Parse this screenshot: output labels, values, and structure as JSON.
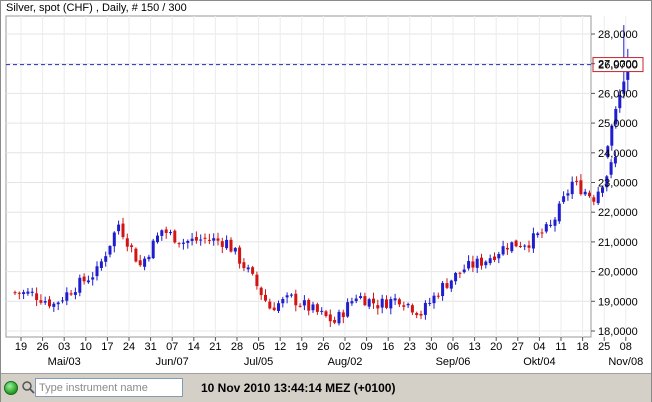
{
  "chart_title": "Silver, spot (CHF) , Daily, # 150 / 300",
  "status": {
    "input_placeholder": "Type instrument name",
    "datetime": "10 Nov 2010 13:44:14  MEZ (+0100)"
  },
  "colors": {
    "up": "#1e1ecf",
    "down": "#d21414",
    "current_line": "#2a2ab8",
    "price_box_border": "#c4232b"
  },
  "chart_data": {
    "type": "candlestick",
    "title": "Silver, spot (CHF) , Daily, # 150 / 300",
    "instrument": "Silver, spot (CHF)",
    "interval": "Daily",
    "ylim": [
      17800,
      28700
    ],
    "yticks": [
      18000,
      19000,
      20000,
      21000,
      22000,
      23000,
      24000,
      25000,
      26000,
      27000,
      28000
    ],
    "ytick_labels": [
      "18,0000",
      "19,0000",
      "20,0000",
      "21,0000",
      "22,0000",
      "23,0000",
      "24,0000",
      "25,0000",
      "26,0000",
      "27,0000",
      "28,0000"
    ],
    "current_price": 26970,
    "current_price_label": "26,9700",
    "xtick_day_labels": [
      "19",
      "26",
      "03",
      "10",
      "17",
      "24",
      "31",
      "07",
      "14",
      "21",
      "28",
      "05",
      "12",
      "19",
      "26",
      "02",
      "09",
      "16",
      "23",
      "30",
      "06",
      "13",
      "20",
      "27",
      "04",
      "11",
      "18",
      "25",
      "08"
    ],
    "xtick_month_labels": [
      {
        "label": "Mai/03",
        "tick_index": 2
      },
      {
        "label": "Jun/07",
        "tick_index": 7
      },
      {
        "label": "Jul/05",
        "tick_index": 11
      },
      {
        "label": "Aug/02",
        "tick_index": 15
      },
      {
        "label": "Sep/06",
        "tick_index": 20
      },
      {
        "label": "Okt/04",
        "tick_index": 24
      },
      {
        "label": "Nov/08",
        "tick_index": 28
      }
    ],
    "grid": true,
    "weekly_close_path": [
      {
        "week": "19",
        "close": 19250
      },
      {
        "week": "26",
        "close": 18900
      },
      {
        "week": "03",
        "close": 19500
      },
      {
        "week": "10",
        "close": 20000
      },
      {
        "week": "17",
        "close": 21600
      },
      {
        "week": "24",
        "close": 20200
      },
      {
        "week": "31",
        "close": 21400
      },
      {
        "week": "07",
        "close": 21000
      },
      {
        "week": "14",
        "close": 21100
      },
      {
        "week": "21",
        "close": 21000
      },
      {
        "week": "28",
        "close": 20000
      },
      {
        "week": "05",
        "close": 18800
      },
      {
        "week": "12",
        "close": 19100
      },
      {
        "week": "19",
        "close": 18700
      },
      {
        "week": "26",
        "close": 18300
      },
      {
        "week": "02",
        "close": 19200
      },
      {
        "week": "09",
        "close": 18900
      },
      {
        "week": "16",
        "close": 19100
      },
      {
        "week": "23",
        "close": 18600
      },
      {
        "week": "30",
        "close": 19500
      },
      {
        "week": "06",
        "close": 20100
      },
      {
        "week": "13",
        "close": 20400
      },
      {
        "week": "20",
        "close": 20900
      },
      {
        "week": "27",
        "close": 21000
      },
      {
        "week": "04",
        "close": 21500
      },
      {
        "week": "11",
        "close": 23000
      },
      {
        "week": "18",
        "close": 22500
      },
      {
        "week": "25",
        "close": 23800
      },
      {
        "week": "08",
        "close": 26970
      }
    ]
  }
}
